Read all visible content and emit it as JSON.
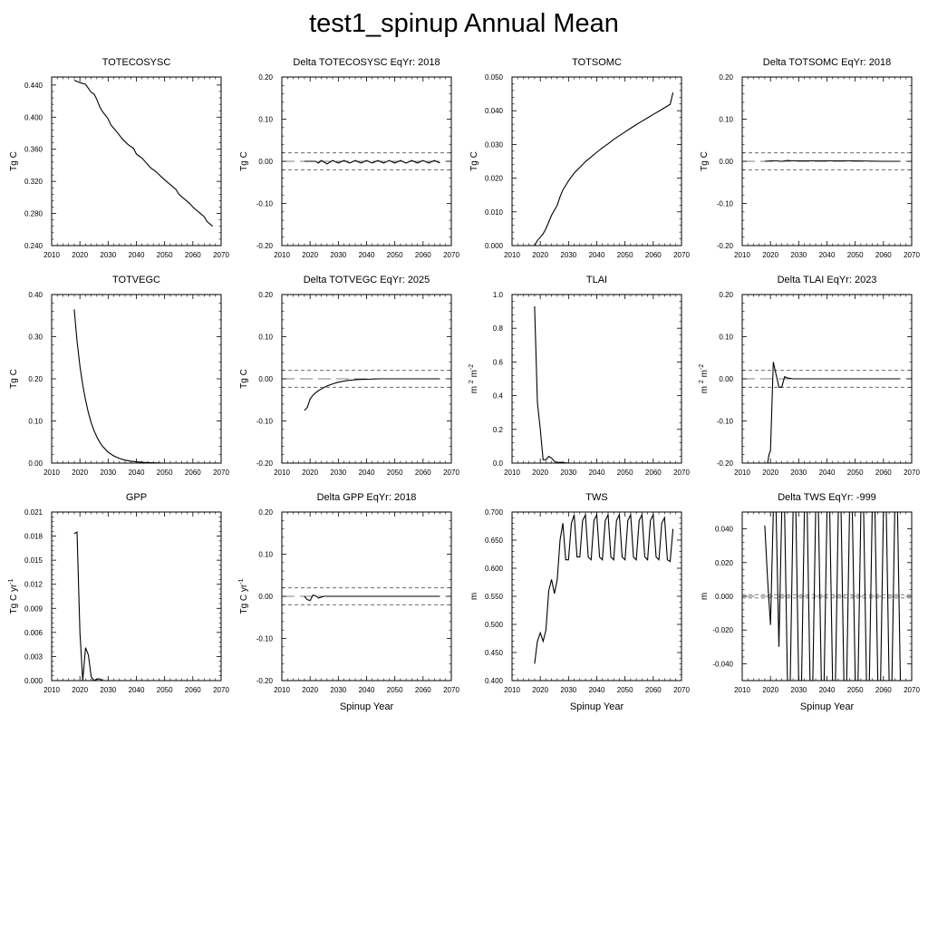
{
  "title": "test1_spinup Annual Mean",
  "chart_data": [
    {
      "type": "line",
      "title": "TOTECOSYSC",
      "ylabel": "Tg C",
      "xlabel": "",
      "xlim": [
        2010,
        2070
      ],
      "ylim": [
        0.24,
        0.45
      ],
      "xticks": [
        2010,
        2020,
        2030,
        2040,
        2050,
        2060,
        2070
      ],
      "yticks": [
        "0.240",
        "0.280",
        "0.320",
        "0.360",
        "0.400",
        "0.440"
      ],
      "series": [
        {
          "x": [
            2018,
            2020,
            2022,
            2023,
            2024,
            2025,
            2026,
            2027,
            2028,
            2030,
            2031,
            2033,
            2035,
            2037,
            2039,
            2040,
            2042,
            2044,
            2045,
            2047,
            2049,
            2050,
            2052,
            2054,
            2055,
            2057,
            2059,
            2060,
            2062,
            2064,
            2065,
            2067
          ],
          "y": [
            0.446,
            0.443,
            0.441,
            0.436,
            0.431,
            0.429,
            0.422,
            0.413,
            0.407,
            0.398,
            0.39,
            0.382,
            0.373,
            0.366,
            0.361,
            0.354,
            0.349,
            0.341,
            0.337,
            0.332,
            0.325,
            0.322,
            0.316,
            0.31,
            0.304,
            0.298,
            0.292,
            0.288,
            0.282,
            0.276,
            0.27,
            0.264
          ]
        }
      ]
    },
    {
      "type": "line",
      "title": "Delta TOTECOSYSC EqYr: 2018",
      "ylabel": "Tg C",
      "xlabel": "",
      "xlim": [
        2010,
        2070
      ],
      "ylim": [
        -0.2,
        0.2
      ],
      "xticks": [
        2010,
        2020,
        2030,
        2040,
        2050,
        2060,
        2070
      ],
      "yticks": [
        "-0.20",
        "-0.10",
        "0.00",
        "0.10",
        "0.20"
      ],
      "reference_lines": [
        0.02,
        0,
        -0.02
      ],
      "series": [
        {
          "x": [
            2018,
            2020,
            2022,
            2023,
            2024,
            2026,
            2028,
            2030,
            2032,
            2034,
            2036,
            2038,
            2040,
            2042,
            2044,
            2046,
            2048,
            2050,
            2052,
            2054,
            2056,
            2058,
            2060,
            2062,
            2064,
            2066
          ],
          "y": [
            0,
            0,
            0,
            -0.004,
            0.002,
            -0.006,
            0.002,
            -0.004,
            0.002,
            -0.004,
            0.002,
            -0.004,
            0.002,
            -0.004,
            0.002,
            -0.004,
            0.002,
            -0.004,
            0.002,
            -0.004,
            0.002,
            -0.004,
            0.002,
            -0.004,
            0.002,
            -0.004
          ]
        }
      ]
    },
    {
      "type": "line",
      "title": "TOTSOMC",
      "ylabel": "Tg C",
      "xlabel": "",
      "xlim": [
        2010,
        2070
      ],
      "ylim": [
        0,
        0.05
      ],
      "xticks": [
        2010,
        2020,
        2030,
        2040,
        2050,
        2060,
        2070
      ],
      "yticks": [
        "0.000",
        "0.010",
        "0.020",
        "0.030",
        "0.040",
        "0.050"
      ],
      "series": [
        {
          "x": [
            2018,
            2019,
            2020,
            2021,
            2022,
            2023,
            2024,
            2025,
            2026,
            2027,
            2028,
            2030,
            2032,
            2034,
            2036,
            2038,
            2040,
            2042,
            2044,
            2046,
            2048,
            2050,
            2052,
            2054,
            2056,
            2058,
            2060,
            2062,
            2064,
            2066,
            2067
          ],
          "y": [
            0,
            0.0015,
            0.0025,
            0.0035,
            0.005,
            0.007,
            0.009,
            0.0105,
            0.012,
            0.0145,
            0.0165,
            0.0192,
            0.0215,
            0.0232,
            0.0249,
            0.0263,
            0.0277,
            0.029,
            0.0302,
            0.0315,
            0.0326,
            0.0337,
            0.0348,
            0.0359,
            0.0369,
            0.0379,
            0.0389,
            0.0399,
            0.0409,
            0.0419,
            0.0454
          ]
        }
      ]
    },
    {
      "type": "line",
      "title": "Delta TOTSOMC EqYr: 2018",
      "ylabel": "Tg C",
      "xlabel": "",
      "xlim": [
        2010,
        2070
      ],
      "ylim": [
        -0.2,
        0.2
      ],
      "xticks": [
        2010,
        2020,
        2030,
        2040,
        2050,
        2060,
        2070
      ],
      "yticks": [
        "-0.20",
        "-0.10",
        "0.00",
        "0.10",
        "0.20"
      ],
      "reference_lines": [
        0.02,
        0,
        -0.02
      ],
      "series": [
        {
          "x": [
            2018,
            2020,
            2022,
            2024,
            2026,
            2028,
            2030,
            2035,
            2040,
            2050,
            2060,
            2066
          ],
          "y": [
            0,
            0.001,
            0.001,
            0,
            0.002,
            0.001,
            0.001,
            0.001,
            0.001,
            0.001,
            0,
            0
          ]
        }
      ]
    },
    {
      "type": "line",
      "title": "TOTVEGC",
      "ylabel": "Tg C",
      "xlabel": "",
      "xlim": [
        2010,
        2070
      ],
      "ylim": [
        0,
        0.4
      ],
      "xticks": [
        2010,
        2020,
        2030,
        2040,
        2050,
        2060,
        2070
      ],
      "yticks": [
        "0.00",
        "0.10",
        "0.20",
        "0.30",
        "0.40"
      ],
      "series": [
        {
          "x": [
            2018,
            2019,
            2020,
            2021,
            2022,
            2023,
            2024,
            2025,
            2026,
            2027,
            2028,
            2030,
            2032,
            2034,
            2036,
            2038,
            2040,
            2043,
            2046,
            2050
          ],
          "y": [
            0.365,
            0.29,
            0.23,
            0.185,
            0.15,
            0.12,
            0.096,
            0.077,
            0.062,
            0.05,
            0.04,
            0.026,
            0.017,
            0.011,
            0.007,
            0.0045,
            0.003,
            0.0015,
            0.0007,
            0
          ]
        }
      ]
    },
    {
      "type": "line",
      "title": "Delta TOTVEGC EqYr: 2025",
      "ylabel": "Tg C",
      "xlabel": "",
      "xlim": [
        2010,
        2070
      ],
      "ylim": [
        -0.2,
        0.2
      ],
      "xticks": [
        2010,
        2020,
        2030,
        2040,
        2050,
        2060,
        2070
      ],
      "yticks": [
        "-0.20",
        "-0.10",
        "0.00",
        "0.10",
        "0.20"
      ],
      "reference_lines": [
        0.02,
        0,
        -0.02
      ],
      "series": [
        {
          "x": [
            2018,
            2019,
            2020,
            2021,
            2022,
            2023,
            2024,
            2026,
            2028,
            2030,
            2033,
            2036,
            2040,
            2045,
            2050,
            2066
          ],
          "y": [
            -0.075,
            -0.068,
            -0.048,
            -0.039,
            -0.033,
            -0.028,
            -0.024,
            -0.017,
            -0.012,
            -0.008,
            -0.004,
            -0.002,
            -0.001,
            0,
            0,
            0
          ]
        }
      ]
    },
    {
      "type": "line",
      "title": "TLAI",
      "ylabel": "m 2 m-2",
      "xlabel": "",
      "xlim": [
        2010,
        2070
      ],
      "ylim": [
        0,
        1
      ],
      "xticks": [
        2010,
        2020,
        2030,
        2040,
        2050,
        2060,
        2070
      ],
      "yticks": [
        "0.0",
        "0.2",
        "0.4",
        "0.6",
        "0.8",
        "1.0"
      ],
      "series": [
        {
          "x": [
            2018,
            2019,
            2020,
            2021,
            2022,
            2023,
            2024,
            2025,
            2026,
            2027,
            2030,
            2040,
            2050,
            2060,
            2067
          ],
          "y": [
            0.93,
            0.36,
            0.2,
            0.02,
            0.02,
            0.04,
            0.03,
            0.01,
            0.002,
            0.005,
            0,
            0,
            0,
            0,
            0
          ]
        }
      ]
    },
    {
      "type": "line",
      "title": "Delta TLAI EqYr: 2023",
      "ylabel": "m 2 m-2",
      "xlabel": "",
      "xlim": [
        2010,
        2070
      ],
      "ylim": [
        -0.2,
        0.2
      ],
      "xticks": [
        2010,
        2020,
        2030,
        2040,
        2050,
        2060,
        2070
      ],
      "yticks": [
        "-0.20",
        "-0.10",
        "0.00",
        "0.10",
        "0.20"
      ],
      "reference_lines": [
        0.02,
        0,
        -0.02
      ],
      "series": [
        {
          "x": [
            2019,
            2019.5,
            2020,
            2021,
            2022,
            2023,
            2024,
            2025,
            2026,
            2027,
            2028,
            2030,
            2040,
            2050,
            2066
          ],
          "y": [
            -0.2,
            -0.18,
            -0.17,
            0.04,
            0.01,
            -0.02,
            -0.02,
            0.005,
            0.002,
            0.001,
            0,
            0,
            0,
            0,
            0
          ]
        }
      ]
    },
    {
      "type": "line",
      "title": "GPP",
      "ylabel": "Tg C yr-1",
      "xlabel": "",
      "xlim": [
        2010,
        2070
      ],
      "ylim": [
        0,
        0.021
      ],
      "xticks": [
        2010,
        2020,
        2030,
        2040,
        2050,
        2060,
        2070
      ],
      "yticks": [
        "0.000",
        "0.003",
        "0.006",
        "0.009",
        "0.012",
        "0.015",
        "0.018",
        "0.021"
      ],
      "series": [
        {
          "x": [
            2018,
            2019,
            2020,
            2021,
            2022,
            2023,
            2024,
            2025,
            2026,
            2027,
            2028,
            2030,
            2040,
            2050,
            2060,
            2067
          ],
          "y": [
            0.0183,
            0.0185,
            0.006,
            0,
            0.0041,
            0.0032,
            0.0005,
            0,
            0.0002,
            0.0002,
            0,
            0,
            0,
            0,
            0,
            0
          ]
        }
      ]
    },
    {
      "type": "line",
      "title": "Delta GPP EqYr: 2018",
      "ylabel": "Tg C yr-1",
      "xlabel": "Spinup Year",
      "xlim": [
        2010,
        2070
      ],
      "ylim": [
        -0.2,
        0.2
      ],
      "xticks": [
        2010,
        2020,
        2030,
        2040,
        2050,
        2060,
        2070
      ],
      "yticks": [
        "-0.20",
        "-0.10",
        "0.00",
        "0.10",
        "0.20"
      ],
      "reference_lines": [
        0.02,
        0,
        -0.02
      ],
      "series": [
        {
          "x": [
            2018,
            2019,
            2020,
            2021,
            2022,
            2023,
            2024,
            2025,
            2026,
            2030,
            2040,
            2050,
            2060,
            2066
          ],
          "y": [
            0,
            -0.008,
            -0.01,
            0.003,
            0.001,
            -0.004,
            -0.002,
            0,
            0,
            0,
            0,
            0,
            0,
            0
          ]
        }
      ]
    },
    {
      "type": "line",
      "title": "TWS",
      "ylabel": "m",
      "xlabel": "Spinup Year",
      "xlim": [
        2010,
        2070
      ],
      "ylim": [
        0.4,
        0.7
      ],
      "xticks": [
        2010,
        2020,
        2030,
        2040,
        2050,
        2060,
        2070
      ],
      "yticks": [
        "0.400",
        "0.450",
        "0.500",
        "0.550",
        "0.600",
        "0.650",
        "0.700"
      ],
      "series": [
        {
          "x": [
            2018,
            2019,
            2020,
            2021,
            2022,
            2023,
            2024,
            2025,
            2026,
            2027,
            2028,
            2029,
            2030,
            2031,
            2032,
            2033,
            2034,
            2035,
            2036,
            2037,
            2038,
            2039,
            2040,
            2041,
            2042,
            2043,
            2044,
            2045,
            2046,
            2047,
            2048,
            2049,
            2050,
            2051,
            2052,
            2053,
            2054,
            2055,
            2056,
            2057,
            2058,
            2059,
            2060,
            2061,
            2062,
            2063,
            2064,
            2065,
            2066,
            2067
          ],
          "y": [
            0.43,
            0.47,
            0.485,
            0.47,
            0.49,
            0.56,
            0.58,
            0.555,
            0.58,
            0.65,
            0.68,
            0.615,
            0.615,
            0.68,
            0.695,
            0.62,
            0.62,
            0.685,
            0.695,
            0.62,
            0.615,
            0.685,
            0.695,
            0.62,
            0.615,
            0.685,
            0.695,
            0.62,
            0.615,
            0.685,
            0.695,
            0.62,
            0.615,
            0.685,
            0.695,
            0.62,
            0.615,
            0.685,
            0.695,
            0.62,
            0.615,
            0.685,
            0.695,
            0.62,
            0.615,
            0.68,
            0.69,
            0.615,
            0.612,
            0.67
          ]
        }
      ]
    },
    {
      "type": "line",
      "title": "Delta TWS EqYr: -999",
      "ylabel": "m",
      "xlabel": "Spinup Year",
      "xlim": [
        2010,
        2070
      ],
      "ylim": [
        -0.05,
        0.05
      ],
      "xticks": [
        2010,
        2020,
        2030,
        2040,
        2050,
        2060,
        2070
      ],
      "yticks": [
        "-0.040",
        "-0.020",
        "0.000",
        "0.020",
        "0.040"
      ],
      "reference_lines": [
        0.001,
        0,
        -0.001
      ],
      "series": [
        {
          "x": [
            2018,
            2019,
            2020,
            2021,
            2022,
            2023,
            2024,
            2025,
            2026,
            2027,
            2028,
            2029,
            2030,
            2031,
            2032,
            2033,
            2034,
            2035,
            2036,
            2037,
            2038,
            2039,
            2040,
            2041,
            2042,
            2043,
            2044,
            2045,
            2046,
            2047,
            2048,
            2049,
            2050,
            2051,
            2052,
            2053,
            2054,
            2055,
            2056,
            2057,
            2058,
            2059,
            2060,
            2061,
            2062,
            2063,
            2064,
            2065,
            2066
          ],
          "y": [
            0.042,
            0.01,
            -0.017,
            0.05,
            0.05,
            -0.03,
            0.05,
            0.05,
            -0.05,
            -0.05,
            0.05,
            0.05,
            -0.05,
            -0.05,
            0.05,
            0.05,
            -0.05,
            -0.05,
            0.05,
            0.05,
            -0.05,
            -0.05,
            0.05,
            0.05,
            -0.05,
            -0.05,
            0.05,
            0.05,
            -0.05,
            -0.05,
            0.05,
            0.05,
            -0.05,
            -0.05,
            0.05,
            0.05,
            -0.05,
            -0.05,
            0.05,
            0.05,
            -0.05,
            -0.05,
            0.05,
            0.05,
            -0.05,
            -0.05,
            0.05,
            0.05,
            -0.05
          ]
        }
      ]
    }
  ]
}
